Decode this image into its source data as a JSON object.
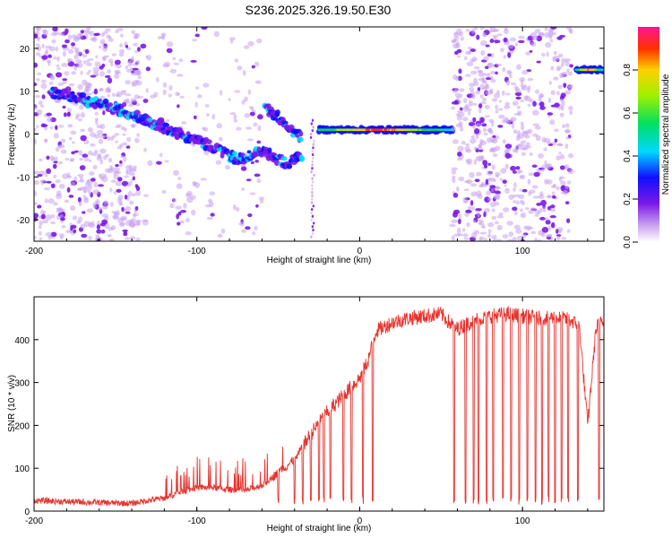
{
  "title": "S236.2025.326.19.50.E30",
  "colors": {
    "frame": "#000000",
    "snr_line": "#e8322d",
    "background": "#ffffff"
  },
  "chart_data": [
    {
      "type": "heatmap",
      "name": "spectrogram",
      "xlabel": "Height of straight line (km)",
      "ylabel": "Frequency (Hz)",
      "xlim": [
        -200,
        150
      ],
      "ylim": [
        -25,
        25
      ],
      "x_ticks": [
        -200,
        -100,
        0,
        100
      ],
      "y_ticks": [
        -20,
        -10,
        0,
        10,
        20
      ],
      "colorbar": {
        "label": "Normalized spectral amplitude",
        "range": [
          0,
          1
        ],
        "ticks": [
          "0.0",
          "0.2",
          "0.4",
          "0.6",
          "0.8"
        ],
        "tick_values": [
          0.0,
          0.2,
          0.4,
          0.6,
          0.8
        ]
      },
      "features": [
        {
          "label": "noise",
          "x_range": [
            -200,
            -135
          ],
          "density": "dense"
        },
        {
          "label": "noise",
          "x_range": [
            -135,
            -60
          ],
          "density": "sparse"
        },
        {
          "label": "descending trace",
          "points": [
            [
              -190,
              10
            ],
            [
              -150,
              6
            ],
            [
              -130,
              3
            ],
            [
              -110,
              0
            ],
            [
              -90,
              -3
            ],
            [
              -75,
              -6
            ],
            [
              -60,
              -4
            ],
            [
              -45,
              -7
            ],
            [
              -35,
              -5
            ]
          ]
        },
        {
          "label": "rising branch",
          "points": [
            [
              -58,
              6
            ],
            [
              -50,
              4
            ],
            [
              -42,
              1
            ],
            [
              -36,
              -1
            ]
          ]
        },
        {
          "label": "steady line",
          "x_range": [
            -25,
            57
          ],
          "frequency": 1,
          "peak_amplitude": 0.95
        },
        {
          "label": "noise",
          "x_range": [
            57,
            130
          ],
          "density": "dense"
        },
        {
          "label": "late line",
          "x_range": [
            133,
            150
          ],
          "frequency": 15,
          "peak_amplitude": 0.9
        }
      ]
    },
    {
      "type": "line",
      "name": "snr",
      "xlabel": "Height of straight line (km)",
      "ylabel": "SNR (10 * v/v)",
      "xlim": [
        -200,
        150
      ],
      "ylim": [
        0,
        500
      ],
      "x_ticks": [
        -200,
        -100,
        0,
        100
      ],
      "y_ticks": [
        0,
        100,
        200,
        300,
        400
      ],
      "series": [
        {
          "name": "SNR",
          "x": [
            -200,
            -180,
            -160,
            -140,
            -130,
            -120,
            -110,
            -100,
            -90,
            -80,
            -70,
            -60,
            -50,
            -40,
            -30,
            -20,
            -10,
            0,
            5,
            10,
            20,
            30,
            40,
            50,
            55,
            60,
            70,
            80,
            90,
            100,
            110,
            120,
            130,
            135,
            140,
            145,
            148
          ],
          "values": [
            25,
            22,
            20,
            18,
            25,
            30,
            45,
            55,
            55,
            50,
            48,
            60,
            90,
            120,
            180,
            230,
            270,
            310,
            350,
            420,
            440,
            450,
            455,
            460,
            440,
            425,
            445,
            455,
            460,
            455,
            450,
            452,
            445,
            430,
            200,
            420,
            450
          ]
        }
      ],
      "dropouts": [
        -50,
        -40,
        -35,
        -30,
        -25,
        -22,
        -18,
        -10,
        -5,
        2,
        8,
        58,
        65,
        70,
        73,
        78,
        82,
        88,
        93,
        98,
        103,
        108,
        112,
        116,
        120,
        124,
        128,
        134,
        147
      ]
    }
  ]
}
